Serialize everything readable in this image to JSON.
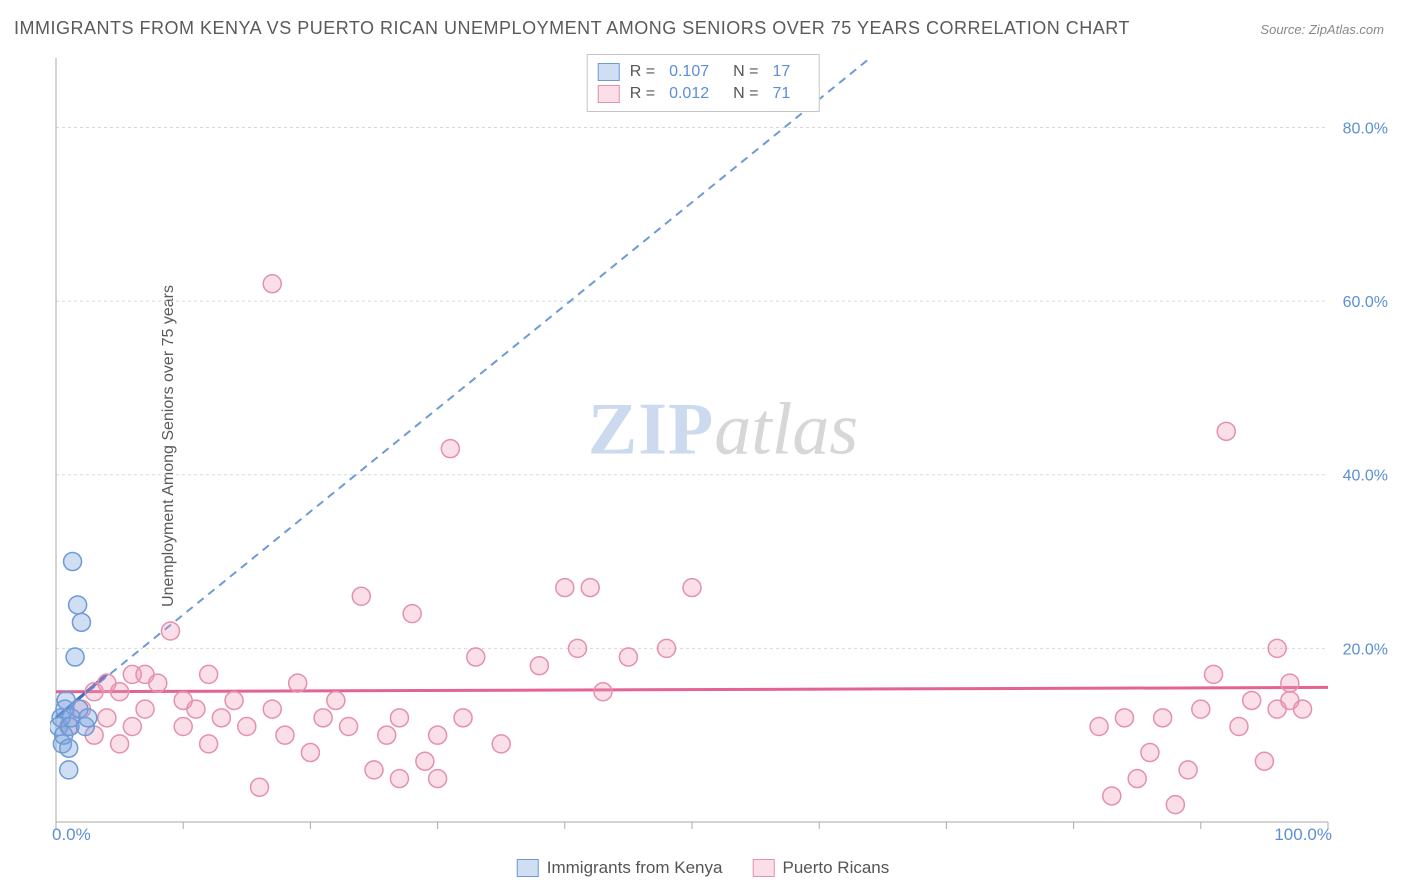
{
  "title": "IMMIGRANTS FROM KENYA VS PUERTO RICAN UNEMPLOYMENT AMONG SENIORS OVER 75 YEARS CORRELATION CHART",
  "source_label": "Source:",
  "source_value": "ZipAtlas.com",
  "y_axis_label": "Unemployment Among Seniors over 75 years",
  "watermark_a": "ZIP",
  "watermark_b": "atlas",
  "chart": {
    "type": "scatter",
    "xlim": [
      0,
      100
    ],
    "ylim": [
      0,
      88
    ],
    "x_ticks": [
      0,
      10,
      20,
      30,
      40,
      50,
      60,
      70,
      80,
      90,
      100
    ],
    "x_tick_labels_visible": {
      "0": "0.0%",
      "100": "100.0%"
    },
    "y_ticks": [
      20,
      40,
      60,
      80
    ],
    "y_tick_labels": [
      "20.0%",
      "40.0%",
      "60.0%",
      "80.0%"
    ],
    "grid_color": "#d8d8d8",
    "background_color": "#ffffff",
    "axis_color": "#aaaaaa",
    "tick_label_color": "#5b8fd6",
    "marker_radius": 9,
    "series": [
      {
        "name": "Immigrants from Kenya",
        "color_fill": "rgba(120,160,220,0.35)",
        "color_stroke": "#6d9bd6",
        "R": "0.107",
        "N": "17",
        "trend_solid": {
          "x1": 0,
          "y1": 12,
          "x2": 4,
          "y2": 17,
          "color": "#3a6fc0",
          "width": 3
        },
        "trend_dashed": {
          "x1": 0,
          "y1": 12,
          "x2": 64,
          "y2": 88,
          "color": "#6d9bd6",
          "width": 2,
          "dash": "8 6"
        },
        "points": [
          [
            0.2,
            11
          ],
          [
            0.4,
            12
          ],
          [
            0.5,
            9
          ],
          [
            0.6,
            10
          ],
          [
            0.7,
            13
          ],
          [
            0.8,
            14
          ],
          [
            1.0,
            6
          ],
          [
            1.1,
            11
          ],
          [
            1.2,
            12
          ],
          [
            1.3,
            30
          ],
          [
            1.5,
            19
          ],
          [
            1.7,
            25
          ],
          [
            1.8,
            13
          ],
          [
            2.0,
            23
          ],
          [
            2.3,
            11
          ],
          [
            2.5,
            12
          ],
          [
            1.0,
            8.5
          ]
        ]
      },
      {
        "name": "Puerto Ricans",
        "color_fill": "rgba(240,150,180,0.3)",
        "color_stroke": "#e590ad",
        "R": "0.012",
        "N": "71",
        "trend_solid": {
          "x1": 0,
          "y1": 15,
          "x2": 100,
          "y2": 15.5,
          "color": "#e36394",
          "width": 3
        },
        "points": [
          [
            1,
            11
          ],
          [
            2,
            13
          ],
          [
            3,
            15
          ],
          [
            3,
            10
          ],
          [
            4,
            16
          ],
          [
            4,
            12
          ],
          [
            5,
            9
          ],
          [
            5,
            15
          ],
          [
            6,
            17
          ],
          [
            6,
            11
          ],
          [
            7,
            13
          ],
          [
            7,
            17
          ],
          [
            8,
            16
          ],
          [
            9,
            22
          ],
          [
            10,
            14
          ],
          [
            10,
            11
          ],
          [
            11,
            13
          ],
          [
            12,
            9
          ],
          [
            12,
            17
          ],
          [
            13,
            12
          ],
          [
            14,
            14
          ],
          [
            15,
            11
          ],
          [
            16,
            4
          ],
          [
            17,
            62
          ],
          [
            17,
            13
          ],
          [
            18,
            10
          ],
          [
            19,
            16
          ],
          [
            20,
            8
          ],
          [
            21,
            12
          ],
          [
            22,
            14
          ],
          [
            23,
            11
          ],
          [
            24,
            26
          ],
          [
            25,
            6
          ],
          [
            26,
            10
          ],
          [
            27,
            5
          ],
          [
            27,
            12
          ],
          [
            28,
            24
          ],
          [
            29,
            7
          ],
          [
            30,
            5
          ],
          [
            30,
            10
          ],
          [
            31,
            43
          ],
          [
            32,
            12
          ],
          [
            33,
            19
          ],
          [
            35,
            9
          ],
          [
            38,
            18
          ],
          [
            40,
            27
          ],
          [
            41,
            20
          ],
          [
            42,
            27
          ],
          [
            43,
            15
          ],
          [
            45,
            19
          ],
          [
            48,
            20
          ],
          [
            50,
            27
          ],
          [
            82,
            11
          ],
          [
            83,
            3
          ],
          [
            84,
            12
          ],
          [
            85,
            5
          ],
          [
            86,
            8
          ],
          [
            87,
            12
          ],
          [
            88,
            2
          ],
          [
            89,
            6
          ],
          [
            90,
            13
          ],
          [
            91,
            17
          ],
          [
            92,
            45
          ],
          [
            93,
            11
          ],
          [
            94,
            14
          ],
          [
            95,
            7
          ],
          [
            96,
            20
          ],
          [
            96,
            13
          ],
          [
            97,
            14
          ],
          [
            97,
            16
          ],
          [
            98,
            13
          ]
        ]
      }
    ]
  },
  "legend_top": {
    "rows": [
      {
        "swatch": "blue",
        "R_label": "R =",
        "R": "0.107",
        "N_label": "N =",
        "N": "17"
      },
      {
        "swatch": "pink",
        "R_label": "R =",
        "R": "0.012",
        "N_label": "N =",
        "N": "71"
      }
    ]
  },
  "legend_bottom": [
    {
      "swatch": "blue",
      "label": "Immigrants from Kenya"
    },
    {
      "swatch": "pink",
      "label": "Puerto Ricans"
    }
  ]
}
